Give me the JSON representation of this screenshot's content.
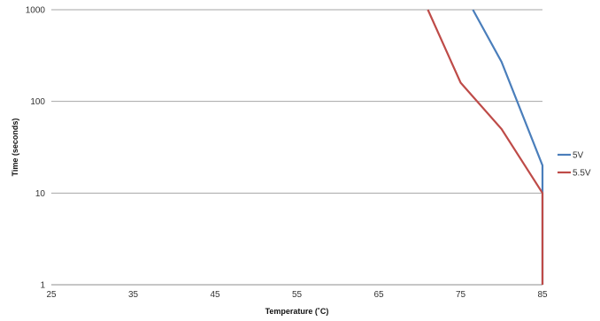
{
  "chart_data": {
    "type": "line",
    "xlabel": "Temperature (˚C)",
    "ylabel": "Time (seconds)",
    "xlim": [
      25,
      85
    ],
    "ylim": [
      1,
      1000
    ],
    "yscale": "log",
    "x_ticks": [
      25,
      35,
      45,
      55,
      65,
      75,
      85
    ],
    "y_ticks": [
      1,
      10,
      100,
      1000
    ],
    "x_tick_labels": [
      "25",
      "35",
      "45",
      "55",
      "65",
      "75",
      "85"
    ],
    "y_tick_labels": [
      "1",
      "10",
      "100",
      "1000"
    ],
    "grid": "horizontal",
    "legend_position": "right",
    "series": [
      {
        "name": "5V",
        "color": "#4a7ebb",
        "points": [
          {
            "x": 76.5,
            "y": 1000
          },
          {
            "x": 80,
            "y": 270
          },
          {
            "x": 85,
            "y": 20
          },
          {
            "x": 85,
            "y": 1
          }
        ]
      },
      {
        "name": "5.5V",
        "color": "#be4b48",
        "points": [
          {
            "x": 71,
            "y": 1000
          },
          {
            "x": 75,
            "y": 160
          },
          {
            "x": 80,
            "y": 50
          },
          {
            "x": 85,
            "y": 10
          },
          {
            "x": 85,
            "y": 1
          }
        ]
      }
    ]
  }
}
